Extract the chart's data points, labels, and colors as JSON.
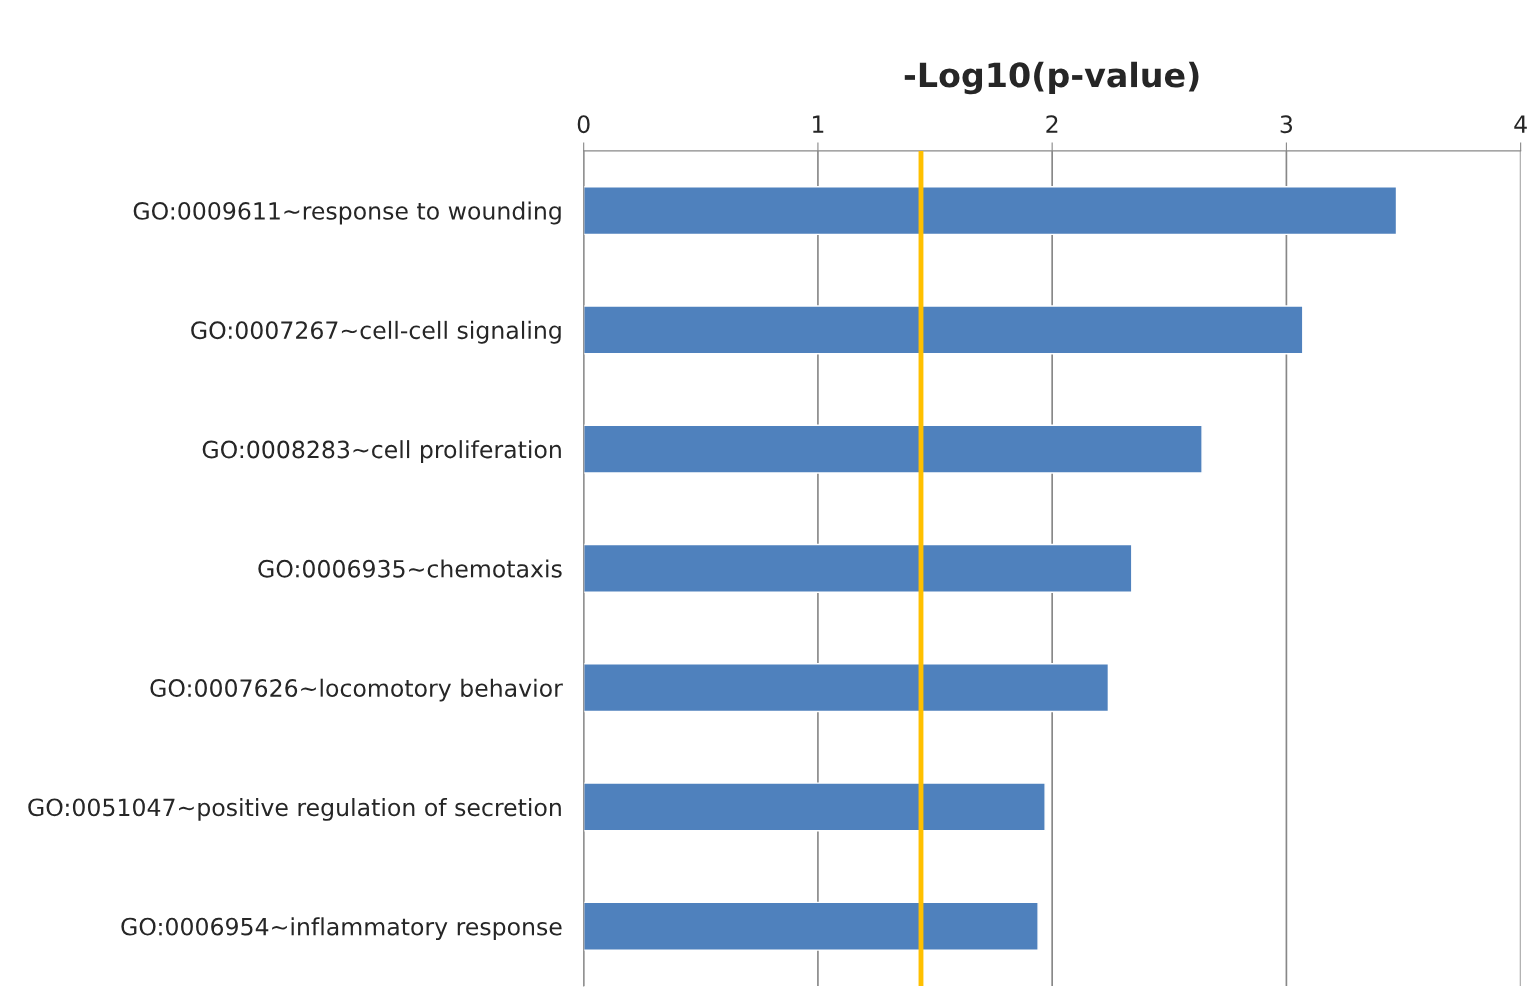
{
  "chart_data": {
    "type": "bar",
    "orientation": "horizontal",
    "xlabel": "-Log10(p-value)",
    "categories": [
      "GO:0009611~response to wounding",
      "GO:0007267~cell-cell signaling",
      "GO:0008283~cell proliferation",
      "GO:0006935~chemotaxis",
      "GO:0007626~locomotory behavior",
      "GO:0051047~positive regulation of secretion",
      "GO:0006954~inflammatory response"
    ],
    "values": [
      3.47,
      3.07,
      2.64,
      2.34,
      2.24,
      1.97,
      1.94
    ],
    "color": "#4f81bd",
    "xlim": [
      0,
      4
    ],
    "xticks": [
      0,
      1,
      2,
      3,
      4
    ],
    "grid": "x",
    "ref_lines": [
      {
        "axis": "x",
        "value": 1.44,
        "color": "#ffc000"
      }
    ]
  }
}
